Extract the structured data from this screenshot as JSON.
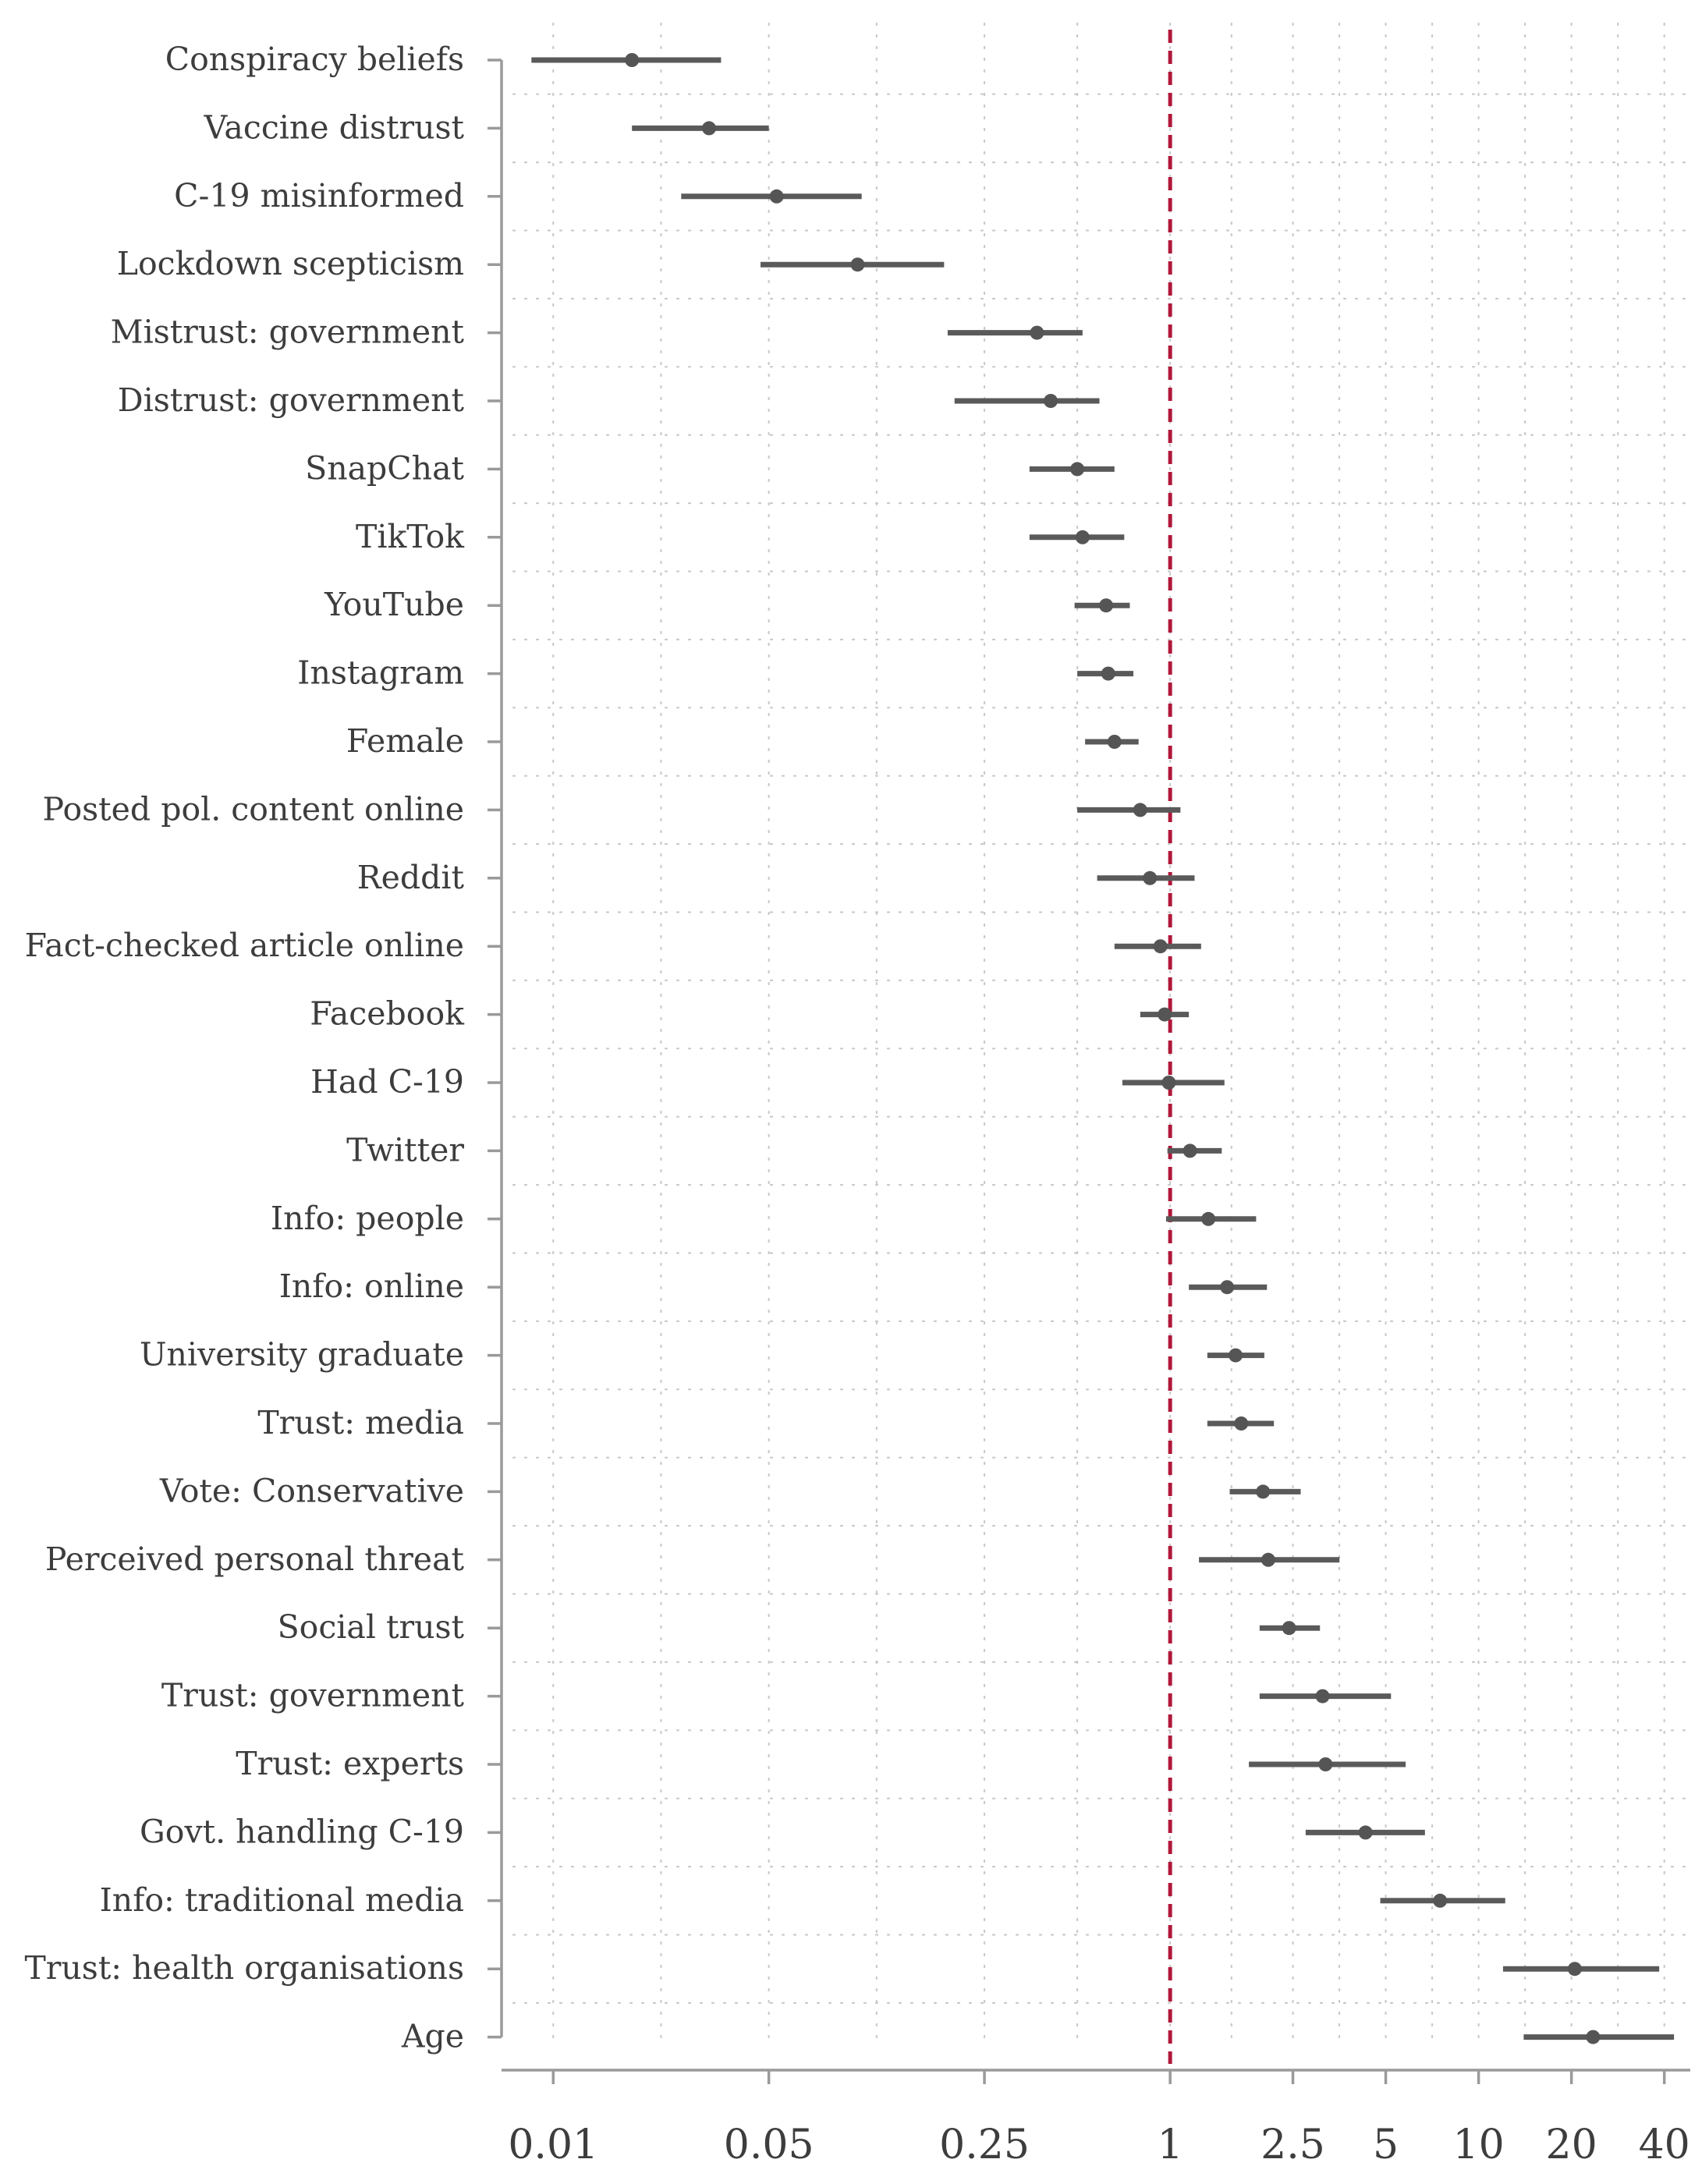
{
  "chart_data": {
    "type": "forest",
    "title": "",
    "xlabel": "",
    "ylabel": "",
    "x_scale": "log",
    "xlim": [
      0.0068,
      48
    ],
    "x_ticks": [
      {
        "value": 0.01,
        "label": "0.01"
      },
      {
        "value": 0.05,
        "label": "0.05"
      },
      {
        "value": 0.25,
        "label": "0.25"
      },
      {
        "value": 1,
        "label": "1"
      },
      {
        "value": 2.5,
        "label": "2.5"
      },
      {
        "value": 5,
        "label": "5"
      },
      {
        "value": 10,
        "label": "10"
      },
      {
        "value": 20,
        "label": "20"
      },
      {
        "value": 40,
        "label": "40"
      }
    ],
    "reference_line": {
      "value": 1,
      "color": "#b0183a",
      "style": "dashed"
    },
    "point_color": "#555555",
    "grid": true,
    "series": [
      {
        "label": "Conspiracy beliefs",
        "estimate": 0.018,
        "lower": 0.0085,
        "upper": 0.035
      },
      {
        "label": "Vaccine distrust",
        "estimate": 0.032,
        "lower": 0.018,
        "upper": 0.05
      },
      {
        "label": "C-19 misinformed",
        "estimate": 0.053,
        "lower": 0.026,
        "upper": 0.1
      },
      {
        "label": "Lockdown scepticism",
        "estimate": 0.097,
        "lower": 0.047,
        "upper": 0.185
      },
      {
        "label": "Mistrust: government",
        "estimate": 0.37,
        "lower": 0.19,
        "upper": 0.52
      },
      {
        "label": "Distrust: government",
        "estimate": 0.41,
        "lower": 0.2,
        "upper": 0.59
      },
      {
        "label": "SnapChat",
        "estimate": 0.5,
        "lower": 0.35,
        "upper": 0.66
      },
      {
        "label": "TikTok",
        "estimate": 0.52,
        "lower": 0.35,
        "upper": 0.71
      },
      {
        "label": "YouTube",
        "estimate": 0.62,
        "lower": 0.49,
        "upper": 0.74
      },
      {
        "label": "Instagram",
        "estimate": 0.63,
        "lower": 0.5,
        "upper": 0.76
      },
      {
        "label": "Female",
        "estimate": 0.66,
        "lower": 0.53,
        "upper": 0.79
      },
      {
        "label": "Posted pol. content online",
        "estimate": 0.8,
        "lower": 0.5,
        "upper": 1.08
      },
      {
        "label": "Reddit",
        "estimate": 0.86,
        "lower": 0.58,
        "upper": 1.2
      },
      {
        "label": "Fact-checked article online",
        "estimate": 0.93,
        "lower": 0.66,
        "upper": 1.26
      },
      {
        "label": "Facebook",
        "estimate": 0.96,
        "lower": 0.8,
        "upper": 1.15
      },
      {
        "label": "Had C-19",
        "estimate": 0.99,
        "lower": 0.7,
        "upper": 1.5
      },
      {
        "label": "Twitter",
        "estimate": 1.16,
        "lower": 0.98,
        "upper": 1.47
      },
      {
        "label": "Info: people",
        "estimate": 1.33,
        "lower": 0.97,
        "upper": 1.9
      },
      {
        "label": "Info: online",
        "estimate": 1.53,
        "lower": 1.15,
        "upper": 2.06
      },
      {
        "label": "University graduate",
        "estimate": 1.63,
        "lower": 1.32,
        "upper": 2.02
      },
      {
        "label": "Trust: media",
        "estimate": 1.7,
        "lower": 1.32,
        "upper": 2.17
      },
      {
        "label": "Vote: Conservative",
        "estimate": 2.0,
        "lower": 1.56,
        "upper": 2.65
      },
      {
        "label": "Perceived personal threat",
        "estimate": 2.08,
        "lower": 1.24,
        "upper": 3.54
      },
      {
        "label": "Social trust",
        "estimate": 2.43,
        "lower": 1.95,
        "upper": 3.06
      },
      {
        "label": "Trust: government",
        "estimate": 3.12,
        "lower": 1.95,
        "upper": 5.2
      },
      {
        "label": "Trust: experts",
        "estimate": 3.19,
        "lower": 1.8,
        "upper": 5.8
      },
      {
        "label": "Govt. handling C-19",
        "estimate": 4.3,
        "lower": 2.75,
        "upper": 6.7
      },
      {
        "label": "Info: traditional media",
        "estimate": 7.5,
        "lower": 4.8,
        "upper": 12.2
      },
      {
        "label": "Trust: health organisations",
        "estimate": 20.5,
        "lower": 12.0,
        "upper": 38.5
      },
      {
        "label": "Age",
        "estimate": 23.5,
        "lower": 14.0,
        "upper": 43.0
      }
    ]
  }
}
